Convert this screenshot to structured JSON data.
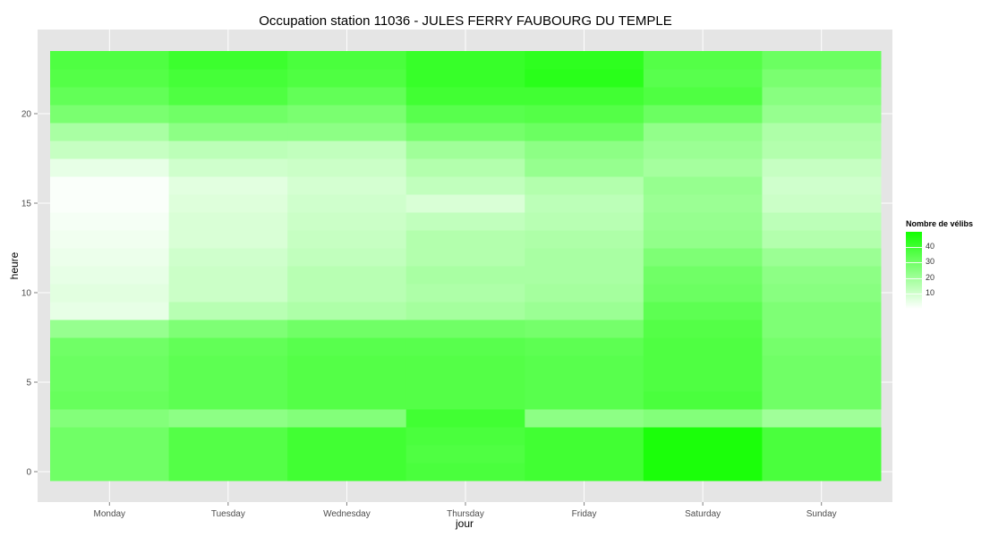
{
  "title": "Occupation station 11036 - JULES FERRY FAUBOURG DU TEMPLE",
  "chart_data": {
    "type": "heatmap",
    "title": "Occupation station 11036 - JULES FERRY FAUBOURG DU TEMPLE",
    "xlabel": "jour",
    "ylabel": "heure",
    "x_categories": [
      "Monday",
      "Tuesday",
      "Wednesday",
      "Thursday",
      "Friday",
      "Saturday",
      "Sunday"
    ],
    "y_values": [
      0,
      1,
      2,
      3,
      4,
      5,
      6,
      7,
      8,
      9,
      10,
      11,
      12,
      13,
      14,
      15,
      16,
      17,
      18,
      19,
      20,
      21,
      22,
      23
    ],
    "y_ticks": [
      0,
      5,
      10,
      15,
      20
    ],
    "ylim": [
      -0.5,
      23.5
    ],
    "values": [
      [
        30,
        36,
        40,
        38,
        40,
        48,
        38
      ],
      [
        30,
        36,
        40,
        37,
        40,
        48,
        38
      ],
      [
        30,
        36,
        40,
        38,
        40,
        48,
        38
      ],
      [
        26,
        24,
        26,
        40,
        24,
        26,
        20
      ],
      [
        32,
        34,
        36,
        36,
        35,
        38,
        30
      ],
      [
        31,
        34,
        36,
        36,
        35,
        37,
        30
      ],
      [
        31,
        34,
        36,
        36,
        35,
        37,
        30
      ],
      [
        30,
        33,
        35,
        35,
        34,
        37,
        29
      ],
      [
        22,
        27,
        30,
        30,
        29,
        36,
        27
      ],
      [
        5,
        15,
        17,
        19,
        21,
        34,
        27
      ],
      [
        6,
        11,
        15,
        17,
        19,
        31,
        25
      ],
      [
        5,
        11,
        15,
        18,
        18,
        30,
        24
      ],
      [
        4,
        10,
        13,
        16,
        18,
        27,
        21
      ],
      [
        3,
        8,
        12,
        16,
        17,
        23,
        16
      ],
      [
        2,
        8,
        11,
        13,
        15,
        22,
        14
      ],
      [
        1,
        7,
        10,
        8,
        14,
        21,
        11
      ],
      [
        1,
        6,
        9,
        13,
        16,
        22,
        10
      ],
      [
        5,
        10,
        11,
        16,
        22,
        19,
        12
      ],
      [
        12,
        14,
        13,
        20,
        24,
        21,
        16
      ],
      [
        18,
        24,
        24,
        29,
        31,
        23,
        17
      ],
      [
        28,
        30,
        28,
        35,
        36,
        31,
        22
      ],
      [
        33,
        37,
        33,
        40,
        40,
        37,
        25
      ],
      [
        36,
        39,
        37,
        42,
        45,
        35,
        28
      ],
      [
        37,
        41,
        38,
        42,
        44,
        36,
        31
      ]
    ],
    "color_scale": {
      "low": "#ffffff",
      "high": "#11ff00",
      "min": 0,
      "max": 50
    },
    "grid": true,
    "panel_background": "#e5e5e5",
    "legend": {
      "title": "Nombre de vélibs",
      "position": "right",
      "ticks": [
        10,
        20,
        30,
        40
      ]
    }
  }
}
